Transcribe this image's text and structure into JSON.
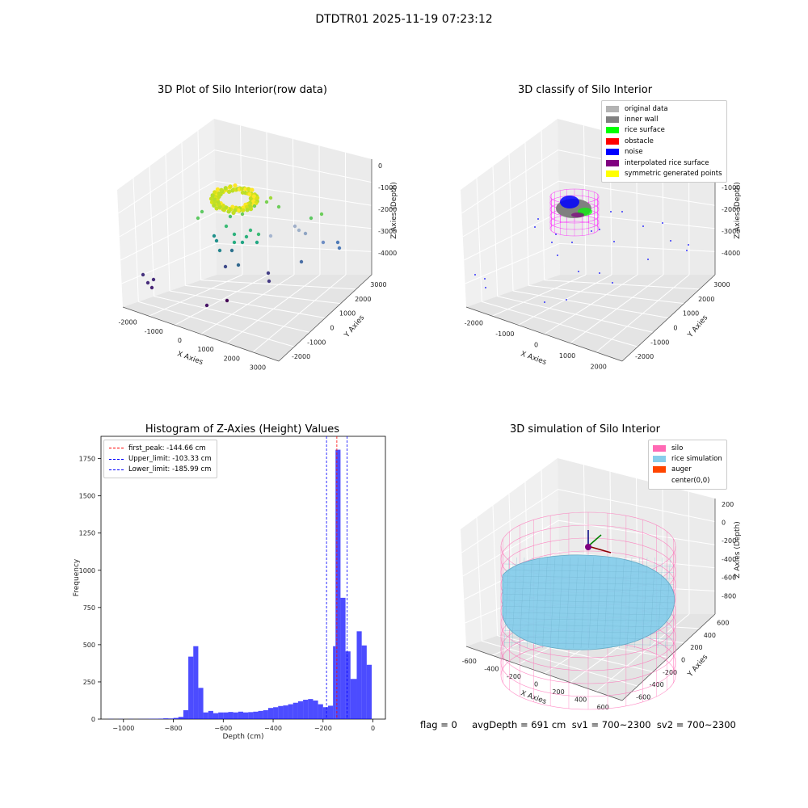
{
  "suptitle": "DTDTR01 2025-11-19 07:23:12",
  "panels": {
    "raw": {
      "title": "3D Plot of Silo Interior(row data)",
      "xlabel": "X Axies",
      "ylabel": "Y Axies",
      "zlabel": "Z Axies (Depth)",
      "xticks": [
        "-2000",
        "-1000",
        "0",
        "1000",
        "2000",
        "3000"
      ],
      "yticks": [
        "-2000",
        "-1000",
        "0",
        "1000",
        "2000",
        "3000"
      ],
      "zticks": [
        "0",
        "-1000",
        "-2000",
        "-3000",
        "-4000"
      ]
    },
    "classify": {
      "title": "3D classify of Silo Interior",
      "xlabel": "X Axies",
      "ylabel": "Y Axies",
      "zlabel": "Z Axies (Depth)",
      "xticks": [
        "-2000",
        "-1000",
        "0",
        "1000",
        "2000"
      ],
      "yticks": [
        "-2000",
        "-1000",
        "0",
        "1000",
        "2000",
        "3000"
      ],
      "zticks": [
        "0",
        "-1000",
        "-2000",
        "-3000",
        "-4000"
      ],
      "legend": [
        {
          "label": "original data",
          "color": "#b3b3b3"
        },
        {
          "label": "inner wall",
          "color": "#808080"
        },
        {
          "label": "rice surface",
          "color": "#00ff00"
        },
        {
          "label": "obstacle",
          "color": "#ff0000"
        },
        {
          "label": "noise",
          "color": "#0000ff"
        },
        {
          "label": "interpolated rice surface",
          "color": "#800080"
        },
        {
          "label": "symmetric generated points",
          "color": "#ffff00"
        }
      ]
    },
    "simulation": {
      "title": "3D simulation of Silo Interior",
      "xlabel": "X Axies",
      "ylabel": "Y Axies",
      "zlabel": "Z Axies (Depth)",
      "xticks": [
        "-600",
        "-400",
        "-200",
        "0",
        "200",
        "400",
        "600"
      ],
      "yticks": [
        "-600",
        "-400",
        "-200",
        "0",
        "200",
        "400",
        "600"
      ],
      "zticks": [
        "200",
        "0",
        "-200",
        "-400",
        "-600",
        "-800"
      ],
      "legend": [
        {
          "label": "silo",
          "color": "#ff69b4"
        },
        {
          "label": "rice simulation",
          "color": "#87ceeb"
        },
        {
          "label": "auger",
          "color": "#ff4500"
        },
        {
          "label": "center(0,0)",
          "color": "#ffffff"
        }
      ]
    }
  },
  "footer": "flag = 0     avgDepth = 691 cm  sv1 = 700~2300  sv2 = 700~2300",
  "chart_data": [
    {
      "type": "bar",
      "title": "Histogram of Z-Axies (Height) Values",
      "xlabel": "Depth (cm)",
      "ylabel": "Frequency",
      "xlim": [
        -1090,
        50
      ],
      "ylim": [
        0,
        1900
      ],
      "xticks": [
        -1000,
        -800,
        -600,
        -400,
        -200,
        0
      ],
      "yticks": [
        0,
        250,
        500,
        750,
        1000,
        1250,
        1500,
        1750
      ],
      "bar_color": "#0000ff",
      "bins": [
        {
          "x0": -1060,
          "x1": -1040,
          "v": 1
        },
        {
          "x0": -1040,
          "x1": -1020,
          "v": 0
        },
        {
          "x0": -1020,
          "x1": -1000,
          "v": 1
        },
        {
          "x0": -1000,
          "x1": -980,
          "v": 0
        },
        {
          "x0": -980,
          "x1": -960,
          "v": 1
        },
        {
          "x0": -960,
          "x1": -940,
          "v": 0
        },
        {
          "x0": -940,
          "x1": -920,
          "v": 1
        },
        {
          "x0": -920,
          "x1": -900,
          "v": 1
        },
        {
          "x0": -900,
          "x1": -880,
          "v": 2
        },
        {
          "x0": -880,
          "x1": -860,
          "v": 2
        },
        {
          "x0": -860,
          "x1": -840,
          "v": 3
        },
        {
          "x0": -840,
          "x1": -820,
          "v": 5
        },
        {
          "x0": -820,
          "x1": -800,
          "v": 4
        },
        {
          "x0": -800,
          "x1": -780,
          "v": 8
        },
        {
          "x0": -780,
          "x1": -760,
          "v": 15
        },
        {
          "x0": -760,
          "x1": -740,
          "v": 60
        },
        {
          "x0": -740,
          "x1": -720,
          "v": 420
        },
        {
          "x0": -720,
          "x1": -700,
          "v": 490
        },
        {
          "x0": -700,
          "x1": -680,
          "v": 210
        },
        {
          "x0": -680,
          "x1": -660,
          "v": 45
        },
        {
          "x0": -660,
          "x1": -640,
          "v": 55
        },
        {
          "x0": -640,
          "x1": -620,
          "v": 40
        },
        {
          "x0": -620,
          "x1": -600,
          "v": 45
        },
        {
          "x0": -600,
          "x1": -580,
          "v": 45
        },
        {
          "x0": -580,
          "x1": -560,
          "v": 48
        },
        {
          "x0": -560,
          "x1": -540,
          "v": 45
        },
        {
          "x0": -540,
          "x1": -520,
          "v": 50
        },
        {
          "x0": -520,
          "x1": -500,
          "v": 45
        },
        {
          "x0": -500,
          "x1": -480,
          "v": 47
        },
        {
          "x0": -480,
          "x1": -460,
          "v": 50
        },
        {
          "x0": -460,
          "x1": -440,
          "v": 55
        },
        {
          "x0": -440,
          "x1": -420,
          "v": 60
        },
        {
          "x0": -420,
          "x1": -400,
          "v": 75
        },
        {
          "x0": -400,
          "x1": -380,
          "v": 80
        },
        {
          "x0": -380,
          "x1": -360,
          "v": 88
        },
        {
          "x0": -360,
          "x1": -340,
          "v": 92
        },
        {
          "x0": -340,
          "x1": -320,
          "v": 100
        },
        {
          "x0": -320,
          "x1": -300,
          "v": 110
        },
        {
          "x0": -300,
          "x1": -280,
          "v": 120
        },
        {
          "x0": -280,
          "x1": -260,
          "v": 130
        },
        {
          "x0": -260,
          "x1": -240,
          "v": 135
        },
        {
          "x0": -240,
          "x1": -220,
          "v": 125
        },
        {
          "x0": -220,
          "x1": -200,
          "v": 100
        },
        {
          "x0": -200,
          "x1": -180,
          "v": 80
        },
        {
          "x0": -180,
          "x1": -160,
          "v": 90
        },
        {
          "x0": -160,
          "x1": -150,
          "v": 490
        },
        {
          "x0": -150,
          "x1": -130,
          "v": 1810
        },
        {
          "x0": -130,
          "x1": -110,
          "v": 815
        },
        {
          "x0": -110,
          "x1": -90,
          "v": 455
        },
        {
          "x0": -90,
          "x1": -65,
          "v": 270
        },
        {
          "x0": -65,
          "x1": -45,
          "v": 590
        },
        {
          "x0": -45,
          "x1": -25,
          "v": 495
        },
        {
          "x0": -25,
          "x1": -5,
          "v": 365
        }
      ],
      "vlines": [
        {
          "label": "first_peak: -144.66 cm",
          "x": -144.66,
          "color": "#ff0000"
        },
        {
          "label": "Upper_limit: -103.33 cm",
          "x": -103.33,
          "color": "#0000ff"
        },
        {
          "label": "Lower_limit: -185.99 cm",
          "x": -185.99,
          "color": "#0000ff"
        }
      ]
    }
  ]
}
